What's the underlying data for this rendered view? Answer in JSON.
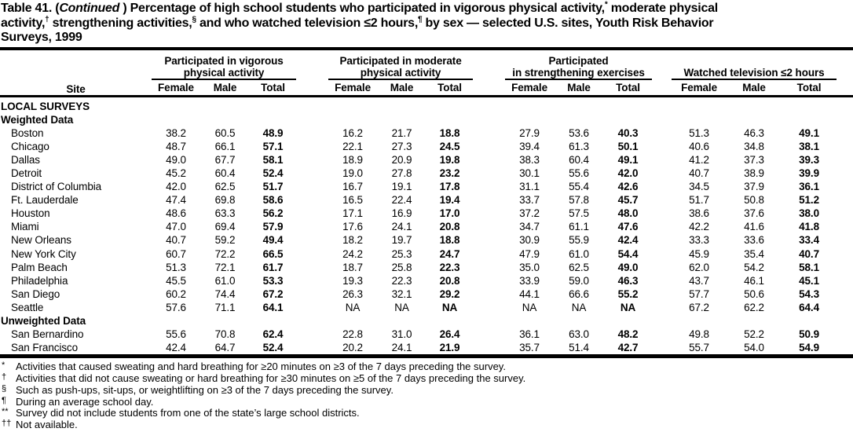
{
  "title": {
    "segments": [
      {
        "text": "Table 41. ("
      },
      {
        "text": "Continued",
        "italic": true
      },
      {
        "text": " ) Percentage of high school students who participated in vigorous physical activity,"
      },
      {
        "text": "*",
        "sup": true
      },
      {
        "text": " moderate physical"
      },
      {
        "br": true
      },
      {
        "text": "activity,"
      },
      {
        "text": "†",
        "sup": true
      },
      {
        "text": " strengthening activities,"
      },
      {
        "text": "§",
        "sup": true
      },
      {
        "text": " and who watched television ≤2 hours,"
      },
      {
        "text": "¶",
        "sup": true
      },
      {
        "text": " by sex — selected U.S. sites, Youth Risk Behavior"
      },
      {
        "br": true
      },
      {
        "text": "Surveys, 1999"
      }
    ]
  },
  "table": {
    "site_header": "Site",
    "groups": [
      {
        "line1": "Participated in vigorous",
        "line2": "physical activity"
      },
      {
        "line1": "Participated in moderate",
        "line2": "physical activity"
      },
      {
        "line1": "Participated",
        "line2": "in strengthening exercises"
      },
      {
        "line1": "",
        "line2": "Watched television ≤2 hours"
      }
    ],
    "subheaders": [
      "Female",
      "Male",
      "Total"
    ],
    "sections": [
      {
        "label": "LOCAL SURVEYS",
        "rows": []
      },
      {
        "label": "Weighted Data",
        "rows": [
          {
            "site": "Boston",
            "values": [
              "38.2",
              "60.5",
              "48.9",
              "16.2",
              "21.7",
              "18.8",
              "27.9",
              "53.6",
              "40.3",
              "51.3",
              "46.3",
              "49.1"
            ]
          },
          {
            "site": "Chicago",
            "values": [
              "48.7",
              "66.1",
              "57.1",
              "22.1",
              "27.3",
              "24.5",
              "39.4",
              "61.3",
              "50.1",
              "40.6",
              "34.8",
              "38.1"
            ]
          },
          {
            "site": "Dallas",
            "values": [
              "49.0",
              "67.7",
              "58.1",
              "18.9",
              "20.9",
              "19.8",
              "38.3",
              "60.4",
              "49.1",
              "41.2",
              "37.3",
              "39.3"
            ]
          },
          {
            "site": "Detroit",
            "values": [
              "45.2",
              "60.4",
              "52.4",
              "19.0",
              "27.8",
              "23.2",
              "30.1",
              "55.6",
              "42.0",
              "40.7",
              "38.9",
              "39.9"
            ]
          },
          {
            "site": "District of Columbia",
            "values": [
              "42.0",
              "62.5",
              "51.7",
              "16.7",
              "19.1",
              "17.8",
              "31.1",
              "55.4",
              "42.6",
              "34.5",
              "37.9",
              "36.1"
            ]
          },
          {
            "site": "Ft. Lauderdale",
            "values": [
              "47.4",
              "69.8",
              "58.6",
              "16.5",
              "22.4",
              "19.4",
              "33.7",
              "57.8",
              "45.7",
              "51.7",
              "50.8",
              "51.2"
            ]
          },
          {
            "site": "Houston",
            "values": [
              "48.6",
              "63.3",
              "56.2",
              "17.1",
              "16.9",
              "17.0",
              "37.2",
              "57.5",
              "48.0",
              "38.6",
              "37.6",
              "38.0"
            ]
          },
          {
            "site": "Miami",
            "values": [
              "47.0",
              "69.4",
              "57.9",
              "17.6",
              "24.1",
              "20.8",
              "34.7",
              "61.1",
              "47.6",
              "42.2",
              "41.6",
              "41.8"
            ]
          },
          {
            "site": "New Orleans",
            "values": [
              "40.7",
              "59.2",
              "49.4",
              "18.2",
              "19.7",
              "18.8",
              "30.9",
              "55.9",
              "42.4",
              "33.3",
              "33.6",
              "33.4"
            ]
          },
          {
            "site": "New York City",
            "values": [
              "60.7",
              "72.2",
              "66.5",
              "24.2",
              "25.3",
              "24.7",
              "47.9",
              "61.0",
              "54.4",
              "45.9",
              "35.4",
              "40.7"
            ]
          },
          {
            "site": "Palm Beach",
            "values": [
              "51.3",
              "72.1",
              "61.7",
              "18.7",
              "25.8",
              "22.3",
              "35.0",
              "62.5",
              "49.0",
              "62.0",
              "54.2",
              "58.1"
            ]
          },
          {
            "site": "Philadelphia",
            "values": [
              "45.5",
              "61.0",
              "53.3",
              "19.3",
              "22.3",
              "20.8",
              "33.9",
              "59.0",
              "46.3",
              "43.7",
              "46.1",
              "45.1"
            ]
          },
          {
            "site": "San Diego",
            "values": [
              "60.2",
              "74.4",
              "67.2",
              "26.3",
              "32.1",
              "29.2",
              "44.1",
              "66.6",
              "55.2",
              "57.7",
              "50.6",
              "54.3"
            ]
          },
          {
            "site": "Seattle",
            "values": [
              "57.6",
              "71.1",
              "64.1",
              "NA",
              "NA",
              "NA",
              "NA",
              "NA",
              "NA",
              "67.2",
              "62.2",
              "64.4"
            ]
          }
        ]
      },
      {
        "label": "Unweighted Data",
        "rows": [
          {
            "site": "San Bernardino",
            "values": [
              "55.6",
              "70.8",
              "62.4",
              "22.8",
              "31.0",
              "26.4",
              "36.1",
              "63.0",
              "48.2",
              "49.8",
              "52.2",
              "50.9"
            ]
          },
          {
            "site": "San Francisco",
            "values": [
              "42.4",
              "64.7",
              "52.4",
              "20.2",
              "24.1",
              "21.9",
              "35.7",
              "51.4",
              "42.7",
              "55.7",
              "54.0",
              "54.9"
            ]
          }
        ]
      }
    ]
  },
  "footnotes": [
    {
      "marker": "*",
      "text": "Activities that caused sweating and hard breathing for ≥20 minutes on ≥3 of the 7 days preceding the survey."
    },
    {
      "marker": "†",
      "text": "Activities that did not cause sweating or hard breathing for ≥30 minutes on ≥5 of the 7 days preceding the survey."
    },
    {
      "marker": "§",
      "text": "Such as push-ups, sit-ups, or weightlifting on ≥3 of the 7 days preceding the survey."
    },
    {
      "marker": "¶",
      "text": "During an average school day."
    },
    {
      "marker": "**",
      "text": "Survey did not include students from one of the state’s large school districts."
    },
    {
      "marker": "††",
      "text": "Not available."
    }
  ],
  "colors": {
    "text": "#000000",
    "background": "#ffffff"
  }
}
